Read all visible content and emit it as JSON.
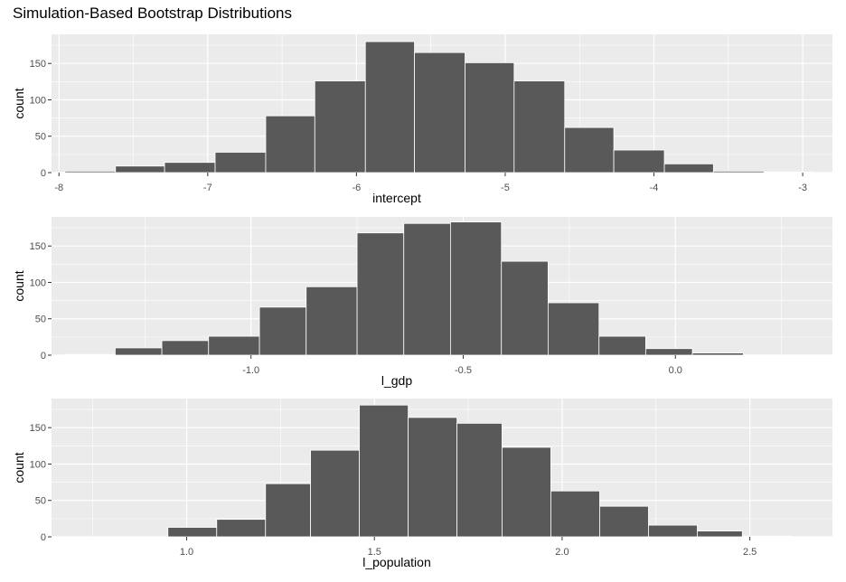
{
  "title": "Simulation-Based Bootstrap Distributions",
  "colors": {
    "panel": "#ebebeb",
    "grid_major": "#ffffff",
    "bar": "#595959",
    "bar_border": "#ffffff"
  },
  "chart_data": [
    {
      "type": "bar",
      "xlabel": "intercept",
      "ylabel": "count",
      "xlim": [
        -8.05,
        -2.8
      ],
      "ylim": [
        0,
        190
      ],
      "xticks": [
        -8,
        -7,
        -6,
        -5,
        -4,
        -3
      ],
      "xtick_labels": [
        "-8",
        "-7",
        "-6",
        "-5",
        "-4",
        "-3"
      ],
      "yticks": [
        0,
        50,
        100,
        150
      ],
      "yticks_labels": [
        "0",
        "50",
        "100",
        "150"
      ],
      "bin_edges": [
        -7.96,
        -7.62,
        -7.29,
        -6.95,
        -6.61,
        -6.28,
        -5.94,
        -5.61,
        -5.27,
        -4.94,
        -4.6,
        -4.27,
        -3.93,
        -3.6,
        -3.26,
        -2.93
      ],
      "counts": [
        2,
        9,
        14,
        28,
        78,
        126,
        180,
        165,
        151,
        126,
        62,
        31,
        12,
        2,
        1
      ]
    },
    {
      "type": "bar",
      "xlabel": "l_gdp",
      "ylabel": "count",
      "xlim": [
        -1.47,
        0.37
      ],
      "ylim": [
        0,
        190
      ],
      "xticks": [
        -1.0,
        -0.5,
        0.0
      ],
      "xtick_labels": [
        "-1.0",
        "-0.5",
        "0.0"
      ],
      "yticks": [
        0,
        50,
        100,
        150
      ],
      "yticks_labels": [
        "0",
        "50",
        "100",
        "150"
      ],
      "bin_edges": [
        -1.44,
        -1.32,
        -1.21,
        -1.1,
        -0.98,
        -0.87,
        -0.75,
        -0.64,
        -0.53,
        -0.41,
        -0.3,
        -0.18,
        -0.07,
        0.04,
        0.16,
        0.27
      ],
      "counts": [
        1,
        10,
        20,
        26,
        66,
        94,
        168,
        181,
        183,
        129,
        72,
        26,
        9,
        3,
        0
      ]
    },
    {
      "type": "bar",
      "xlabel": "l_population",
      "ylabel": "count",
      "xlim": [
        0.64,
        2.72
      ],
      "ylim": [
        0,
        190
      ],
      "xticks": [
        1.0,
        1.5,
        2.0,
        2.5
      ],
      "xtick_labels": [
        "1.0",
        "1.5",
        "2.0",
        "2.5"
      ],
      "yticks": [
        0,
        50,
        100,
        150
      ],
      "yticks_labels": [
        "0",
        "50",
        "100",
        "150"
      ],
      "bin_edges": [
        0.69,
        0.82,
        0.95,
        1.08,
        1.21,
        1.33,
        1.46,
        1.59,
        1.72,
        1.84,
        1.97,
        2.1,
        2.23,
        2.36,
        2.48,
        2.61
      ],
      "counts": [
        0,
        0,
        13,
        24,
        73,
        119,
        181,
        164,
        156,
        123,
        63,
        42,
        16,
        8,
        1
      ]
    }
  ]
}
